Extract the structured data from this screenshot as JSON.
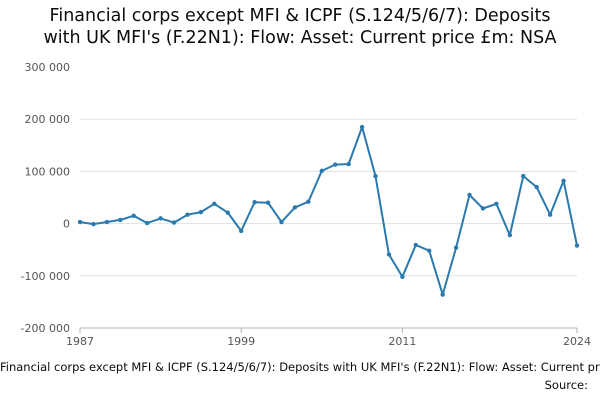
{
  "chart_data": {
    "type": "line",
    "title_lines": [
      "Financial corps except MFI & ICPF (S.124/5/6/7): Deposits",
      "with UK MFI's (F.22N1): Flow: Asset: Current price £m: NSA"
    ],
    "xlabel": "Financial corps except MFI & ICPF (S.124/5/6/7): Deposits with UK MFI's (F.22N1): Flow: Asset: Current price £m: NSA",
    "source_label": "Source:",
    "ylim": [
      -200000,
      300000
    ],
    "xlim": [
      1987,
      2024
    ],
    "y_ticks": [
      300000,
      200000,
      100000,
      0,
      -100000,
      -200000
    ],
    "y_tick_labels": [
      "300 000",
      "200 000",
      "100 000",
      "0",
      "-100 000",
      "-200 000"
    ],
    "x_ticks": [
      1987,
      1999,
      2011,
      2024
    ],
    "x_tick_labels": [
      "1987",
      "1999",
      "2011",
      "2024"
    ],
    "grid": "horizontal",
    "line_color": "#2a7ab0",
    "series": [
      {
        "x": [
          1987,
          1988,
          1989,
          1990,
          1991,
          1992,
          1993,
          1994,
          1995,
          1996,
          1997,
          1998,
          1999,
          2000,
          2001,
          2002,
          2003,
          2004,
          2005,
          2006,
          2007,
          2008,
          2009,
          2010,
          2011,
          2012,
          2013,
          2014,
          2015,
          2016,
          2017,
          2018,
          2019,
          2020,
          2021,
          2022,
          2023,
          2024
        ],
        "values": [
          3000,
          -1000,
          3000,
          7000,
          15000,
          1000,
          10000,
          2000,
          17000,
          22000,
          38000,
          21000,
          -14000,
          41000,
          40000,
          3000,
          31000,
          42000,
          101000,
          113000,
          114000,
          185000,
          91000,
          -59000,
          -102000,
          -41000,
          -52000,
          -136000,
          -46000,
          55000,
          29000,
          38000,
          -22000,
          91000,
          70000,
          17000,
          82000,
          -42000
        ]
      }
    ]
  }
}
